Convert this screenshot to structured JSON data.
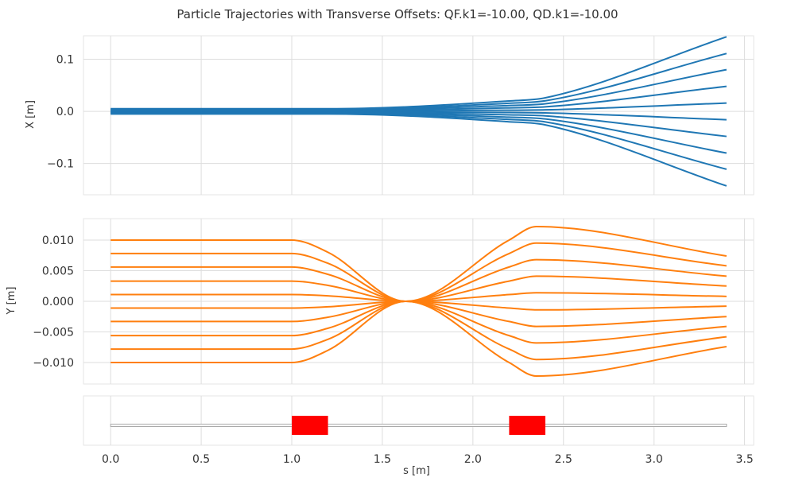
{
  "title": "Particle Trajectories with Transverse Offsets: QF.k1=-10.00, QD.k1=-10.00",
  "chart_data": [
    {
      "type": "line",
      "name": "x-trajectories",
      "xlabel": "",
      "ylabel": "X [m]",
      "xlim": [
        -0.15,
        3.55
      ],
      "ylim": [
        -0.16,
        0.145
      ],
      "xticks": [
        0.0,
        0.5,
        1.0,
        1.5,
        2.0,
        2.5,
        3.0,
        3.5
      ],
      "yticks": [
        -0.1,
        0.0,
        0.1
      ],
      "ytick_labels": [
        "−0.1",
        "0.0",
        "0.1"
      ],
      "grid": true,
      "color": "#1f77b4",
      "s_knots": [
        0.0,
        1.0,
        1.2,
        2.2,
        2.4,
        3.4
      ],
      "series": [
        {
          "values": [
            0.005,
            0.005,
            0.005,
            0.02,
            0.026,
            0.143
          ]
        },
        {
          "values": [
            0.0039,
            0.0039,
            0.0039,
            0.0156,
            0.0203,
            0.111
          ]
        },
        {
          "values": [
            0.0028,
            0.0028,
            0.0028,
            0.0112,
            0.0146,
            0.08
          ]
        },
        {
          "values": [
            0.0017,
            0.0017,
            0.0017,
            0.0067,
            0.0087,
            0.048
          ]
        },
        {
          "values": [
            0.0006,
            0.0006,
            0.0006,
            0.0022,
            0.0029,
            0.016
          ]
        },
        {
          "values": [
            -0.0006,
            -0.0006,
            -0.0006,
            -0.0022,
            -0.0029,
            -0.016
          ]
        },
        {
          "values": [
            -0.0017,
            -0.0017,
            -0.0017,
            -0.0067,
            -0.0087,
            -0.048
          ]
        },
        {
          "values": [
            -0.0028,
            -0.0028,
            -0.0028,
            -0.0112,
            -0.0146,
            -0.08
          ]
        },
        {
          "values": [
            -0.0039,
            -0.0039,
            -0.0039,
            -0.0156,
            -0.0203,
            -0.111
          ]
        },
        {
          "values": [
            -0.005,
            -0.005,
            -0.005,
            -0.02,
            -0.026,
            -0.143
          ]
        }
      ]
    },
    {
      "type": "line",
      "name": "y-trajectories",
      "xlabel": "",
      "ylabel": "Y [m]",
      "xlim": [
        -0.15,
        3.55
      ],
      "ylim": [
        -0.0135,
        0.0135
      ],
      "xticks": [
        0.0,
        0.5,
        1.0,
        1.5,
        2.0,
        2.5,
        3.0,
        3.5
      ],
      "yticks": [
        -0.01,
        -0.005,
        0.0,
        0.005,
        0.01
      ],
      "ytick_labels": [
        "−0.010",
        "−0.005",
        "0.000",
        "0.005",
        "0.010"
      ],
      "grid": true,
      "color": "#ff7f0e",
      "s_knots": [
        0.0,
        1.0,
        1.2,
        1.63,
        2.2,
        2.35,
        3.4
      ],
      "series": [
        {
          "values": [
            0.01,
            0.01,
            0.008,
            0.0,
            0.01,
            0.0122,
            0.0074
          ]
        },
        {
          "values": [
            0.0078,
            0.0078,
            0.0062,
            0.0,
            0.0078,
            0.0095,
            0.0058
          ]
        },
        {
          "values": [
            0.0056,
            0.0056,
            0.0044,
            0.0,
            0.0056,
            0.0068,
            0.0041
          ]
        },
        {
          "values": [
            0.0033,
            0.0033,
            0.0026,
            0.0,
            0.0033,
            0.0041,
            0.0025
          ]
        },
        {
          "values": [
            0.0011,
            0.0011,
            0.0009,
            0.0,
            0.0011,
            0.0014,
            0.0008
          ]
        },
        {
          "values": [
            -0.0011,
            -0.0011,
            -0.0009,
            0.0,
            -0.0011,
            -0.0014,
            -0.0008
          ]
        },
        {
          "values": [
            -0.0033,
            -0.0033,
            -0.0026,
            0.0,
            -0.0033,
            -0.0041,
            -0.0025
          ]
        },
        {
          "values": [
            -0.0056,
            -0.0056,
            -0.0044,
            0.0,
            -0.0056,
            -0.0068,
            -0.0041
          ]
        },
        {
          "values": [
            -0.0078,
            -0.0078,
            -0.0062,
            0.0,
            -0.0078,
            -0.0095,
            -0.0058
          ]
        },
        {
          "values": [
            -0.01,
            -0.01,
            -0.008,
            0.0,
            -0.01,
            -0.0122,
            -0.0074
          ]
        }
      ]
    },
    {
      "type": "bar",
      "name": "lattice-layout",
      "xlabel": "s [m]",
      "ylabel": "",
      "xlim": [
        -0.15,
        3.55
      ],
      "xticks": [
        0.0,
        0.5,
        1.0,
        1.5,
        2.0,
        2.5,
        3.0,
        3.5
      ],
      "xtick_labels": [
        "0.0",
        "0.5",
        "1.0",
        "1.5",
        "2.0",
        "2.5",
        "3.0",
        "3.5"
      ],
      "grid": true,
      "beamline": [
        0.0,
        3.4
      ],
      "elements": [
        {
          "start": 1.0,
          "end": 1.2,
          "color": "#ff0000"
        },
        {
          "start": 2.2,
          "end": 2.4,
          "color": "#ff0000"
        }
      ]
    }
  ]
}
